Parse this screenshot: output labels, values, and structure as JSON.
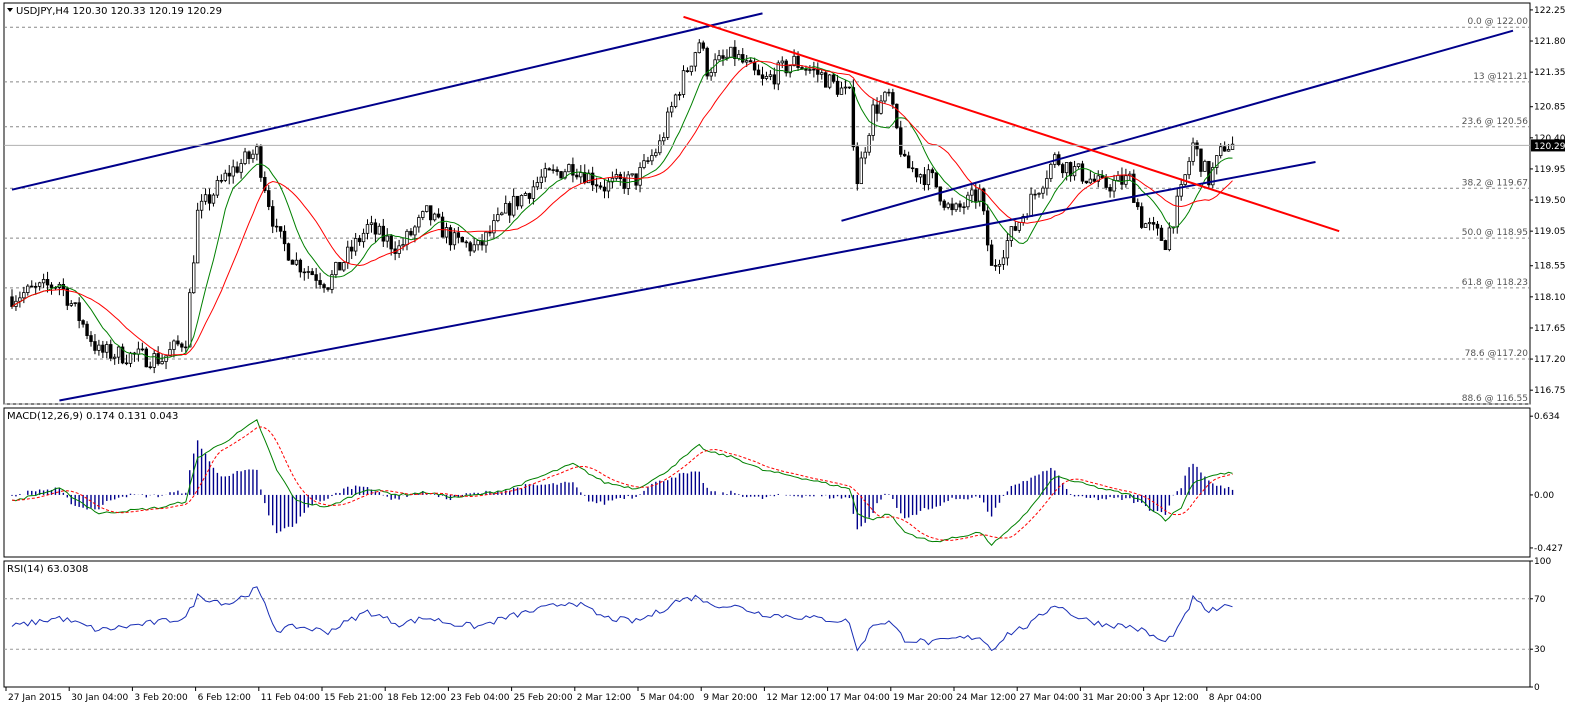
{
  "chart_data": [
    {
      "type": "candlestick",
      "header": {
        "symbol_tf": "USDJPY,H4",
        "ohlc": "120.30 120.33 120.19 120.29"
      },
      "ylim": [
        116.55,
        122.35
      ],
      "y_ticks": [
        "122.25",
        "121.80",
        "121.35",
        "120.85",
        "120.40",
        "119.95",
        "119.50",
        "119.05",
        "118.55",
        "118.10",
        "117.65",
        "117.20",
        "116.75"
      ],
      "x_ticks": [
        "27 Jan 2015",
        "30 Jan 04:00",
        "3 Feb 20:00",
        "6 Feb 12:00",
        "11 Feb 04:00",
        "15 Feb 21:00",
        "18 Feb 12:00",
        "23 Feb 04:00",
        "25 Feb 20:00",
        "2 Mar 12:00",
        "5 Mar 04:00",
        "9 Mar 20:00",
        "12 Mar 12:00",
        "17 Mar 04:00",
        "19 Mar 20:00",
        "24 Mar 12:00",
        "27 Mar 04:00",
        "31 Mar 20:00",
        "3 Apr 12:00",
        "8 Apr 04:00"
      ],
      "current_price": "120.29",
      "fibonacci": [
        {
          "label": "0.0 @ 122.00",
          "price": 122.0
        },
        {
          "label": "13 @121.21",
          "price": 121.21
        },
        {
          "label": "23.6 @ 120.56",
          "price": 120.56
        },
        {
          "label": "38.2 @ 119.67",
          "price": 119.67
        },
        {
          "label": "50.0 @ 118.95",
          "price": 118.95
        },
        {
          "label": "61.8 @ 118.23",
          "price": 118.23
        },
        {
          "label": "78.6 @117.20",
          "price": 117.2
        },
        {
          "label": "88.6 @ 116.55",
          "price": 116.55
        }
      ],
      "anchor_points": [
        [
          0,
          118.1
        ],
        [
          12,
          118.3
        ],
        [
          22,
          117.3
        ],
        [
          38,
          117.2
        ],
        [
          44,
          117.5
        ],
        [
          47,
          119.3
        ],
        [
          55,
          119.9
        ],
        [
          62,
          120.2
        ],
        [
          67,
          119.0
        ],
        [
          72,
          118.6
        ],
        [
          80,
          118.3
        ],
        [
          90,
          119.1
        ],
        [
          98,
          118.8
        ],
        [
          105,
          119.3
        ],
        [
          112,
          118.9
        ],
        [
          118,
          118.8
        ],
        [
          126,
          119.4
        ],
        [
          134,
          119.8
        ],
        [
          142,
          120.0
        ],
        [
          150,
          119.7
        ],
        [
          158,
          119.8
        ],
        [
          164,
          120.3
        ],
        [
          168,
          121.0
        ],
        [
          174,
          121.8
        ],
        [
          176,
          121.4
        ],
        [
          183,
          121.6
        ],
        [
          190,
          121.2
        ],
        [
          198,
          121.5
        ],
        [
          205,
          121.3
        ],
        [
          212,
          121.0
        ],
        [
          214,
          119.8
        ],
        [
          218,
          120.8
        ],
        [
          222,
          121.0
        ],
        [
          226,
          120.0
        ],
        [
          233,
          119.8
        ],
        [
          238,
          119.3
        ],
        [
          245,
          119.6
        ],
        [
          248,
          118.5
        ],
        [
          252,
          118.9
        ],
        [
          258,
          119.5
        ],
        [
          264,
          120.1
        ],
        [
          270,
          119.9
        ],
        [
          276,
          119.7
        ],
        [
          283,
          119.8
        ],
        [
          286,
          119.2
        ],
        [
          292,
          118.9
        ],
        [
          296,
          119.6
        ],
        [
          299,
          120.3
        ],
        [
          303,
          119.8
        ],
        [
          307,
          120.29
        ]
      ],
      "lines": [
        {
          "name": "",
          "color": "#00008b",
          "points": [
            [
              0,
              119.65
            ],
            [
              190,
              122.2
            ]
          ]
        },
        {
          "name": "",
          "color": "#00008b",
          "points": [
            [
              12,
              116.6
            ],
            [
              330,
              120.05
            ]
          ]
        },
        {
          "name": "",
          "color": "#00008b",
          "points": [
            [
              210,
              119.2
            ],
            [
              380,
              121.95
            ]
          ]
        },
        {
          "name": "",
          "color": "#ff0000",
          "points": [
            [
              170,
              122.15
            ],
            [
              336,
              119.05
            ]
          ]
        }
      ]
    },
    {
      "type": "line",
      "header": "MACD(12,26,9) 0.174 0.131 0.043",
      "ylim": [
        -0.5,
        0.7
      ],
      "y_ticks": [
        "0.634",
        "0.00",
        "-0.427"
      ],
      "anchor_points": [
        [
          0,
          -0.05
        ],
        [
          12,
          0.05
        ],
        [
          22,
          -0.15
        ],
        [
          38,
          -0.1
        ],
        [
          44,
          -0.05
        ],
        [
          47,
          0.3
        ],
        [
          55,
          0.45
        ],
        [
          62,
          0.6
        ],
        [
          67,
          0.2
        ],
        [
          72,
          -0.05
        ],
        [
          80,
          -0.1
        ],
        [
          90,
          0.05
        ],
        [
          98,
          0.0
        ],
        [
          105,
          0.02
        ],
        [
          112,
          -0.02
        ],
        [
          118,
          0.0
        ],
        [
          126,
          0.05
        ],
        [
          134,
          0.15
        ],
        [
          142,
          0.25
        ],
        [
          150,
          0.1
        ],
        [
          158,
          0.05
        ],
        [
          164,
          0.15
        ],
        [
          168,
          0.25
        ],
        [
          174,
          0.4
        ],
        [
          176,
          0.35
        ],
        [
          183,
          0.3
        ],
        [
          190,
          0.2
        ],
        [
          198,
          0.15
        ],
        [
          205,
          0.1
        ],
        [
          212,
          0.05
        ],
        [
          214,
          -0.15
        ],
        [
          218,
          -0.2
        ],
        [
          222,
          -0.15
        ],
        [
          226,
          -0.3
        ],
        [
          233,
          -0.38
        ],
        [
          238,
          -0.35
        ],
        [
          245,
          -0.3
        ],
        [
          248,
          -0.4
        ],
        [
          252,
          -0.3
        ],
        [
          258,
          -0.1
        ],
        [
          264,
          0.15
        ],
        [
          270,
          0.1
        ],
        [
          276,
          0.05
        ],
        [
          283,
          0.0
        ],
        [
          286,
          -0.05
        ],
        [
          292,
          -0.2
        ],
        [
          296,
          -0.1
        ],
        [
          299,
          0.1
        ],
        [
          303,
          0.15
        ],
        [
          307,
          0.174
        ]
      ]
    },
    {
      "type": "line",
      "header": "RSI(14) 63.0308",
      "ylim": [
        0,
        100
      ],
      "y_ticks": [
        "100",
        "70",
        "30",
        "0"
      ],
      "anchor_points": [
        [
          0,
          48
        ],
        [
          12,
          55
        ],
        [
          22,
          45
        ],
        [
          38,
          52
        ],
        [
          44,
          55
        ],
        [
          47,
          72
        ],
        [
          55,
          66
        ],
        [
          62,
          78
        ],
        [
          67,
          45
        ],
        [
          72,
          48
        ],
        [
          80,
          44
        ],
        [
          90,
          60
        ],
        [
          98,
          50
        ],
        [
          105,
          55
        ],
        [
          112,
          50
        ],
        [
          118,
          48
        ],
        [
          126,
          56
        ],
        [
          134,
          62
        ],
        [
          142,
          68
        ],
        [
          150,
          55
        ],
        [
          158,
          52
        ],
        [
          164,
          60
        ],
        [
          168,
          68
        ],
        [
          174,
          72
        ],
        [
          176,
          66
        ],
        [
          183,
          64
        ],
        [
          190,
          58
        ],
        [
          198,
          56
        ],
        [
          205,
          54
        ],
        [
          212,
          52
        ],
        [
          214,
          28
        ],
        [
          218,
          50
        ],
        [
          222,
          52
        ],
        [
          226,
          38
        ],
        [
          233,
          35
        ],
        [
          238,
          38
        ],
        [
          245,
          40
        ],
        [
          248,
          30
        ],
        [
          252,
          42
        ],
        [
          258,
          50
        ],
        [
          264,
          66
        ],
        [
          270,
          55
        ],
        [
          276,
          50
        ],
        [
          283,
          48
        ],
        [
          286,
          45
        ],
        [
          292,
          35
        ],
        [
          296,
          50
        ],
        [
          299,
          70
        ],
        [
          303,
          60
        ],
        [
          307,
          63.03
        ]
      ]
    }
  ]
}
